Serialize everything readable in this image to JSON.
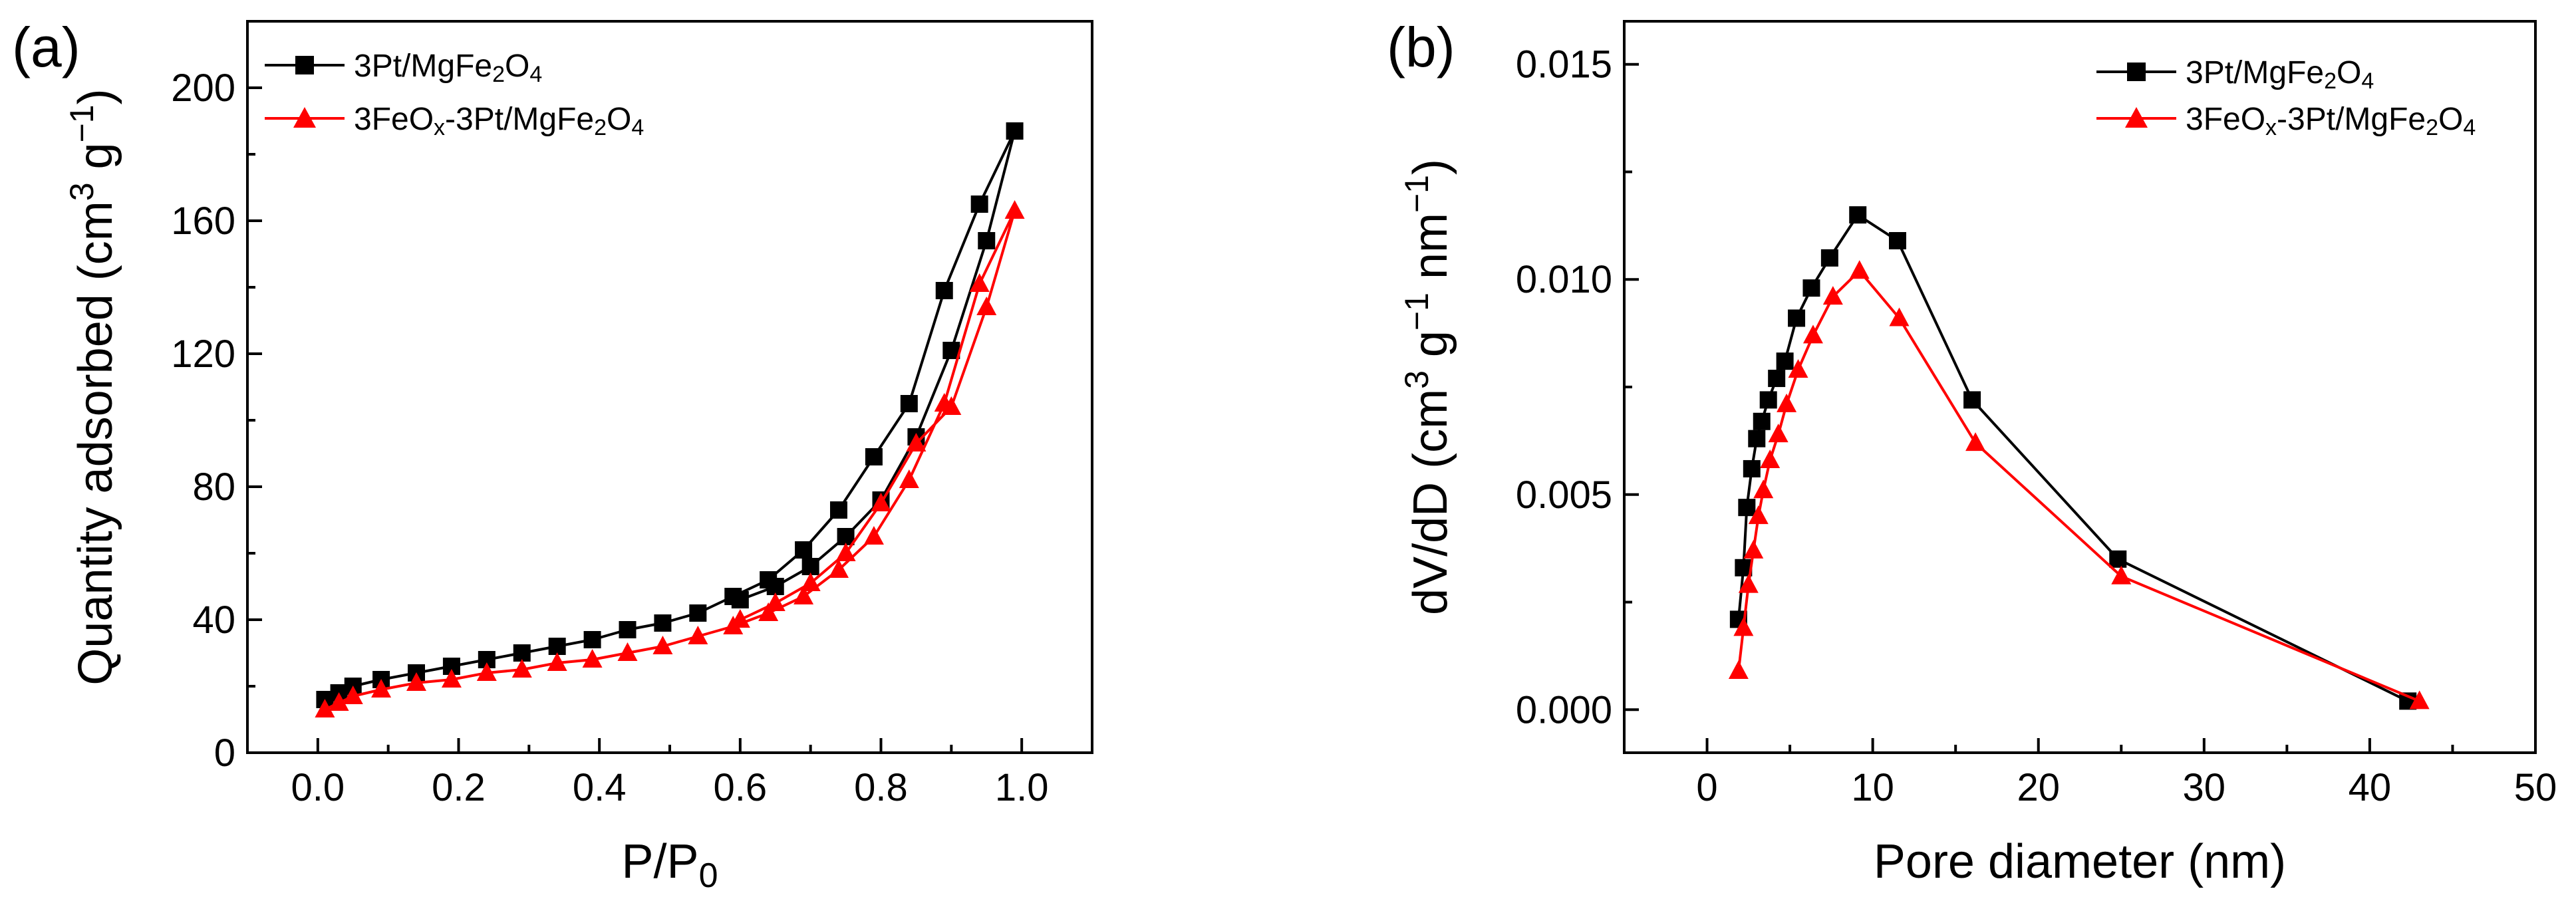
{
  "chart_data": [
    {
      "type": "line",
      "panel_label": "(a)",
      "title": "",
      "xlabel_main": "P/P",
      "xlabel_sub": "0",
      "ylabel_main": "Quantity adsorbed (cm",
      "ylabel_sup1": "3",
      "ylabel_mid": " g",
      "ylabel_sup2": "−1",
      "ylabel_end": ")",
      "xlim": [
        -0.1,
        1.1
      ],
      "ylim": [
        0,
        220
      ],
      "xticks": [
        0.0,
        0.2,
        0.4,
        0.6,
        0.8,
        1.0
      ],
      "xtick_labels": [
        "0.0",
        "0.2",
        "0.4",
        "0.6",
        "0.8",
        "1.0"
      ],
      "yticks": [
        0,
        40,
        80,
        120,
        160,
        200
      ],
      "ytick_labels": [
        "0",
        "40",
        "80",
        "120",
        "160",
        "200"
      ],
      "legend_position": "top-left",
      "series": [
        {
          "name": "3Pt/MgFe2O4",
          "legend_parts": [
            "3Pt/MgFe",
            "2",
            "O",
            "4",
            "",
            "",
            "",
            ""
          ],
          "color": "#000000",
          "marker": "square",
          "x": [
            0.01,
            0.03,
            0.05,
            0.09,
            0.14,
            0.19,
            0.24,
            0.29,
            0.34,
            0.39,
            0.44,
            0.49,
            0.54,
            0.59,
            0.64,
            0.69,
            0.74,
            0.79,
            0.84,
            0.89,
            0.94,
            0.99,
            0.95,
            0.9,
            0.85,
            0.8,
            0.75,
            0.7,
            0.65,
            0.6
          ],
          "y": [
            16,
            18,
            20,
            22,
            24,
            26,
            28,
            30,
            32,
            34,
            37,
            39,
            42,
            47,
            52,
            61,
            73,
            89,
            105,
            139,
            165,
            187,
            154,
            121,
            95,
            76,
            65,
            56,
            50,
            46
          ]
        },
        {
          "name": "3FeOx-3Pt/MgFe2O4",
          "legend_parts": [
            "3FeO",
            "x",
            "-3Pt/MgFe",
            "2",
            "O",
            "4",
            "",
            ""
          ],
          "color": "#ff0000",
          "marker": "triangle",
          "x": [
            0.01,
            0.03,
            0.05,
            0.09,
            0.14,
            0.19,
            0.24,
            0.29,
            0.34,
            0.39,
            0.44,
            0.49,
            0.54,
            0.59,
            0.64,
            0.69,
            0.74,
            0.79,
            0.84,
            0.89,
            0.94,
            0.99,
            0.95,
            0.9,
            0.85,
            0.8,
            0.75,
            0.7,
            0.65,
            0.6
          ],
          "y": [
            13,
            15,
            17,
            19,
            21,
            22,
            24,
            25,
            27,
            28,
            30,
            32,
            35,
            38,
            42,
            47,
            55,
            65,
            82,
            105,
            141,
            163,
            134,
            104,
            93,
            75,
            60,
            51,
            45,
            40
          ]
        }
      ]
    },
    {
      "type": "line",
      "panel_label": "(b)",
      "title": "",
      "xlabel_main": "Pore diameter (nm)",
      "ylabel_main": "dV/dD (cm",
      "ylabel_sup1": "3",
      "ylabel_mid": " g",
      "ylabel_sup2": "−1",
      "ylabel_mid2": " nm",
      "ylabel_sup3": "−1",
      "ylabel_end": ")",
      "xlim": [
        -5,
        50
      ],
      "ylim": [
        -0.001,
        0.016
      ],
      "xticks": [
        0,
        10,
        20,
        30,
        40,
        50
      ],
      "xtick_labels": [
        "0",
        "10",
        "20",
        "30",
        "40",
        "50"
      ],
      "yticks": [
        0.0,
        0.005,
        0.01,
        0.015
      ],
      "ytick_labels": [
        "0.000",
        "0.005",
        "0.010",
        "0.015"
      ],
      "legend_position": "top-right",
      "series": [
        {
          "name": "3Pt/MgFe2O4",
          "legend_parts": [
            "3Pt/MgFe",
            "2",
            "O",
            "4",
            "",
            "",
            "",
            ""
          ],
          "color": "#000000",
          "marker": "square",
          "x": [
            1.9,
            2.2,
            2.4,
            2.7,
            3.0,
            3.3,
            3.7,
            4.2,
            4.7,
            5.4,
            6.3,
            7.4,
            9.1,
            11.5,
            16.0,
            24.8,
            42.3
          ],
          "y": [
            0.0021,
            0.0033,
            0.0047,
            0.0056,
            0.0063,
            0.0067,
            0.0072,
            0.0077,
            0.0081,
            0.0091,
            0.0098,
            0.0105,
            0.0115,
            0.0109,
            0.0072,
            0.0035,
            0.0002
          ]
        },
        {
          "name": "3FeOx-3Pt/MgFe2O4",
          "legend_parts": [
            "3FeO",
            "x",
            "-3Pt/MgFe",
            "2",
            "O",
            "4",
            "",
            ""
          ],
          "color": "#ff0000",
          "marker": "triangle",
          "x": [
            1.9,
            2.2,
            2.5,
            2.8,
            3.1,
            3.4,
            3.8,
            4.3,
            4.8,
            5.5,
            6.4,
            7.6,
            9.2,
            11.6,
            16.2,
            25.0,
            43.0
          ],
          "y": [
            0.0009,
            0.0019,
            0.0029,
            0.0037,
            0.0045,
            0.0051,
            0.0058,
            0.0064,
            0.0071,
            0.0079,
            0.0087,
            0.0096,
            0.0102,
            0.0091,
            0.0062,
            0.0031,
            0.0002
          ]
        }
      ]
    }
  ]
}
